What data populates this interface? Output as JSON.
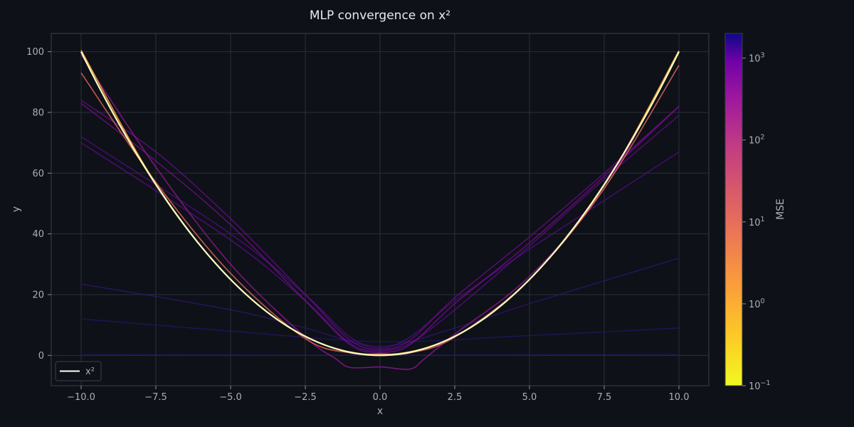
{
  "chart_data": {
    "type": "line",
    "title": "MLP convergence on x²",
    "xlabel": "x",
    "ylabel": "y",
    "xlim": [
      -11,
      11
    ],
    "ylim": [
      -10,
      106
    ],
    "x_ticks": [
      -10,
      -7.5,
      -5,
      -2.5,
      0,
      2.5,
      5,
      7.5,
      10
    ],
    "x_tick_labels": [
      "−10.0",
      "−7.5",
      "−5.0",
      "−2.5",
      "0.0",
      "2.5",
      "5.0",
      "7.5",
      "10.0"
    ],
    "y_ticks": [
      0,
      20,
      40,
      60,
      80,
      100
    ],
    "y_tick_labels": [
      "0",
      "20",
      "40",
      "60",
      "80",
      "100"
    ],
    "grid": true,
    "legend": {
      "position": "lower-left",
      "entries": [
        {
          "label": "x²",
          "color": "#ffffff"
        }
      ]
    },
    "target": {
      "name": "x²",
      "function": "x^2",
      "x_range": [
        -10,
        10
      ],
      "color": "#fbfdbf"
    },
    "series": [
      {
        "mse": 2000,
        "color": "#1f1a6e",
        "opacity": 0.55,
        "points": [
          [
            -10,
            0.3
          ],
          [
            0,
            0.1
          ],
          [
            10,
            0.4
          ]
        ]
      },
      {
        "mse": 1200,
        "color": "#2a177a",
        "opacity": 0.6,
        "points": [
          [
            -10,
            12
          ],
          [
            -5,
            8
          ],
          [
            0,
            4.5
          ],
          [
            5,
            6.5
          ],
          [
            10,
            9
          ]
        ]
      },
      {
        "mse": 700,
        "color": "#381586",
        "opacity": 0.6,
        "points": [
          [
            -10,
            23.5
          ],
          [
            -5,
            15
          ],
          [
            -2.5,
            9
          ],
          [
            0,
            3
          ],
          [
            2.5,
            9
          ],
          [
            5,
            17
          ],
          [
            10,
            32
          ]
        ]
      },
      {
        "mse": 250,
        "color": "#5c0c94",
        "opacity": 0.65,
        "points": [
          [
            -10,
            72
          ],
          [
            -5,
            40
          ],
          [
            -2.5,
            20
          ],
          [
            -1,
            6
          ],
          [
            0,
            2.5
          ],
          [
            1,
            6
          ],
          [
            2.5,
            18
          ],
          [
            5,
            35
          ],
          [
            7.5,
            51
          ],
          [
            10,
            67
          ]
        ]
      },
      {
        "mse": 180,
        "color": "#6a0b9c",
        "opacity": 0.65,
        "points": [
          [
            -10,
            70
          ],
          [
            -5,
            38
          ],
          [
            -2.5,
            18
          ],
          [
            -1,
            4
          ],
          [
            0,
            1.5
          ],
          [
            1,
            4
          ],
          [
            2.5,
            15
          ],
          [
            5,
            36
          ],
          [
            7.5,
            58
          ],
          [
            10,
            79
          ]
        ]
      },
      {
        "mse": 140,
        "color": "#7a0aa0",
        "opacity": 0.65,
        "points": [
          [
            -10,
            84
          ],
          [
            -7.5,
            67
          ],
          [
            -5,
            45
          ],
          [
            -2.5,
            20
          ],
          [
            -1,
            5
          ],
          [
            0,
            2
          ],
          [
            1,
            5
          ],
          [
            2.5,
            19
          ],
          [
            5,
            39
          ],
          [
            7.5,
            60
          ],
          [
            10,
            82
          ]
        ]
      },
      {
        "mse": 100,
        "color": "#8a0ca2",
        "opacity": 0.65,
        "points": [
          [
            -10,
            83
          ],
          [
            -7.5,
            64
          ],
          [
            -5,
            43
          ],
          [
            -2.5,
            18
          ],
          [
            -1,
            3.5
          ],
          [
            0,
            1
          ],
          [
            1,
            3.5
          ],
          [
            2.5,
            17
          ],
          [
            5,
            37
          ],
          [
            7.5,
            59
          ],
          [
            10,
            82
          ]
        ]
      },
      {
        "mse": 30,
        "color": "#9c179e",
        "opacity": 0.75,
        "points": [
          [
            -10,
            99
          ],
          [
            -7.5,
            62
          ],
          [
            -5,
            30
          ],
          [
            -2.5,
            6
          ],
          [
            -1.5,
            -1
          ],
          [
            -1,
            -4
          ],
          [
            0,
            -3.8
          ],
          [
            1,
            -4.5
          ],
          [
            1.5,
            -1
          ],
          [
            2.5,
            7
          ],
          [
            5,
            26
          ],
          [
            7.5,
            55
          ],
          [
            10,
            100
          ]
        ]
      },
      {
        "mse": 3,
        "color": "#e16462",
        "opacity": 0.85,
        "points": [
          [
            -10,
            93
          ],
          [
            -7.5,
            57
          ],
          [
            -5,
            27
          ],
          [
            -2.5,
            5.5
          ],
          [
            -1,
            0.8
          ],
          [
            0,
            0.5
          ],
          [
            1,
            0.8
          ],
          [
            2.5,
            6
          ],
          [
            5,
            25
          ],
          [
            7.5,
            55
          ],
          [
            10,
            95.5
          ]
        ]
      },
      {
        "mse": 0.5,
        "color": "#fca636",
        "opacity": 0.9,
        "points": [
          [
            -10,
            100.5
          ],
          [
            -7.5,
            56.5
          ],
          [
            -5,
            25
          ],
          [
            -2.5,
            6.2
          ],
          [
            0,
            0.2
          ],
          [
            2.5,
            6.3
          ],
          [
            5,
            25
          ],
          [
            7.5,
            56
          ],
          [
            10,
            100.3
          ]
        ]
      }
    ],
    "colorbar": {
      "label": "MSE",
      "scale": "log",
      "range": [
        0.1,
        2000
      ],
      "colormap": "plasma",
      "ticks": [
        {
          "value": 0.1,
          "base": "10",
          "exp": "−1"
        },
        {
          "value": 1,
          "base": "10",
          "exp": "0"
        },
        {
          "value": 10,
          "base": "10",
          "exp": "1"
        },
        {
          "value": 100,
          "base": "10",
          "exp": "2"
        },
        {
          "value": 1000,
          "base": "10",
          "exp": "3"
        }
      ]
    }
  },
  "colors": {
    "background": "#0e1117",
    "grid": "#2a2f3a",
    "text": "#a9afbb",
    "title": "#e8eaee"
  }
}
